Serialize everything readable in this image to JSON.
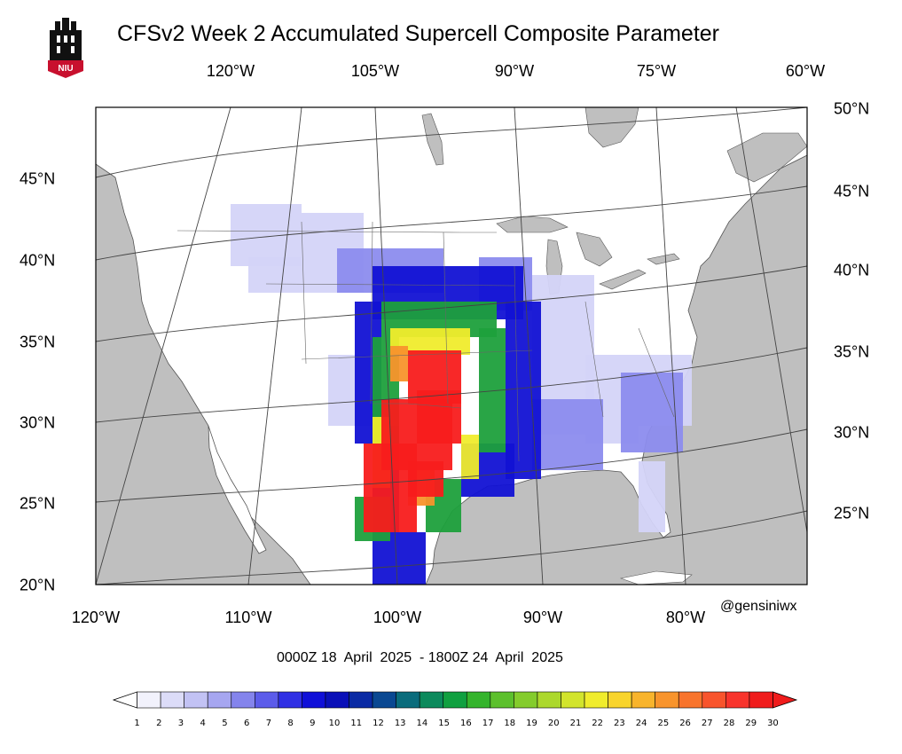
{
  "title": "CFSv2 Week 2 Accumulated Supercell Composite Parameter",
  "logo_text": "NIU",
  "credit": "@gensiniwx",
  "date_range": "0000Z 18  April  2025  - 1800Z 24  April  2025",
  "axes": {
    "top_lon_labels": [
      "120°W",
      "105°W",
      "90°W",
      "75°W",
      "60°W"
    ],
    "bottom_lon_labels": [
      "120°W",
      "110°W",
      "100°W",
      "90°W",
      "80°W"
    ],
    "left_lat_labels": [
      "45°N",
      "40°N",
      "35°N",
      "30°N",
      "25°N",
      "20°N"
    ],
    "right_lat_labels": [
      "50°N",
      "45°N",
      "40°N",
      "35°N",
      "30°N",
      "25°N"
    ]
  },
  "colorbar": {
    "ticks": [
      "1",
      "2",
      "3",
      "4",
      "5",
      "6",
      "7",
      "8",
      "9",
      "10",
      "11",
      "12",
      "13",
      "14",
      "15",
      "16",
      "17",
      "18",
      "19",
      "20",
      "21",
      "22",
      "23",
      "24",
      "25",
      "26",
      "27",
      "28",
      "29",
      "30"
    ],
    "colors": [
      "#f2f2fc",
      "#dcdcf8",
      "#c2c2f4",
      "#a6a6f0",
      "#8484ec",
      "#5c5cea",
      "#3030e4",
      "#1010d8",
      "#0a10b8",
      "#0a2aa4",
      "#0a4892",
      "#0a6c7c",
      "#0c8a5c",
      "#10a040",
      "#34b42c",
      "#5cc02c",
      "#84cc2c",
      "#acd82c",
      "#d2e42c",
      "#f0ec2c",
      "#f8d42c",
      "#f8b42c",
      "#f8942c",
      "#f8742c",
      "#f8542c",
      "#f8342c",
      "#f01c1c"
    ],
    "has_arrows": true
  },
  "field_colors": {
    "level_low": "#d4d4f8",
    "level_mid": "#8c8cee",
    "level_blue": "#1212d4",
    "level_green": "#1ea03c",
    "level_yellow": "#f0ec2c",
    "level_orange": "#f8942c",
    "level_red": "#f81c1c",
    "land_outside": "#bfbfbf",
    "water": "#bfbfbf",
    "conus_land": "#ffffff"
  }
}
